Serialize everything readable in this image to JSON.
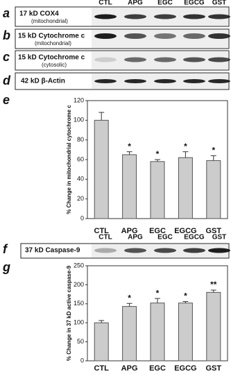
{
  "lanes": [
    "CTL",
    "APG",
    "EGC",
    "EGCG",
    "GST"
  ],
  "panels": {
    "a": {
      "letter": "a",
      "label": "17 kD COX4",
      "sublabel": "(mitochondrial)"
    },
    "b": {
      "letter": "b",
      "label": "15 kD Cytochrome c",
      "sublabel": "(mitochondrial)"
    },
    "c": {
      "letter": "c",
      "label": "15 kD Cytochrome c",
      "sublabel": "(cytosolic)"
    },
    "d": {
      "letter": "d",
      "label": "42 kD β-Actin"
    },
    "e": {
      "letter": "e"
    },
    "f": {
      "letter": "f",
      "label": "37 kD Caspase-9"
    },
    "g": {
      "letter": "g"
    }
  },
  "chart_data": [
    {
      "type": "bar",
      "y_label": "% Change in mitochondrial cytochrome c",
      "categories": [
        "CTL",
        "APG",
        "EGC",
        "EGCG",
        "GST"
      ],
      "values": [
        100,
        65,
        58,
        62,
        59
      ],
      "errors": [
        8,
        3,
        2,
        6,
        5
      ],
      "annotations": [
        null,
        "*",
        "*",
        "*",
        "*"
      ],
      "color": "#cccccc",
      "ylim": [
        0,
        120
      ],
      "yticks": [
        0,
        20,
        40,
        60,
        80,
        100,
        120
      ]
    },
    {
      "type": "bar",
      "y_label": "% Change in 37 kD active caspase-9",
      "categories": [
        "CTL",
        "APG",
        "EGC",
        "EGCG",
        "GST"
      ],
      "values": [
        100,
        143,
        152,
        152,
        180
      ],
      "errors": [
        6,
        8,
        12,
        4,
        6
      ],
      "annotations": [
        null,
        "*",
        "*",
        "*",
        "**"
      ],
      "color": "#cccccc",
      "ylim": [
        0,
        250
      ],
      "yticks": [
        0,
        50,
        100,
        150,
        200,
        250
      ]
    }
  ]
}
